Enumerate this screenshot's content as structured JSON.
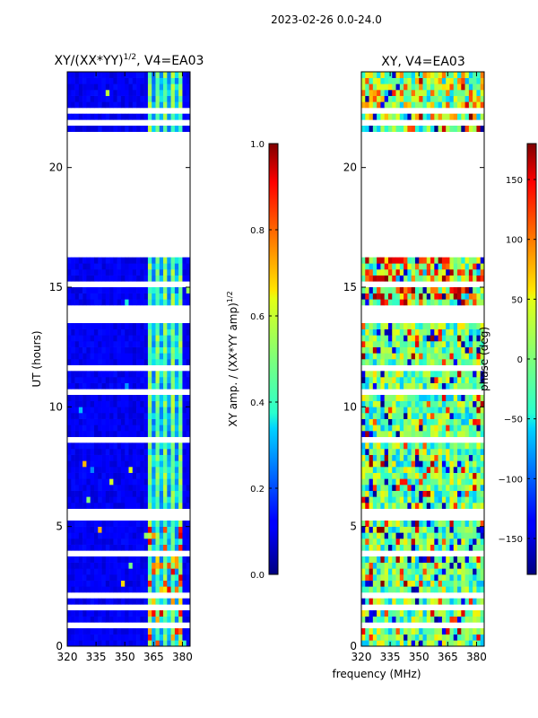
{
  "figure_title": "2023-02-26 0.0-24.0",
  "chart_data": [
    {
      "type": "heatmap",
      "title_main": "XY/(XX*YY)",
      "title_sup": "1/2",
      "title_suffix": ", V4=EA03",
      "xlabel": "",
      "ylabel": "UT (hours)",
      "xlim": [
        320,
        384
      ],
      "ylim": [
        0,
        24
      ],
      "xticks": [
        "320",
        "335",
        "350",
        "365",
        "380"
      ],
      "xtick_values": [
        320,
        335,
        350,
        365,
        380
      ],
      "yticks": [
        "0",
        "5",
        "10",
        "15",
        "20"
      ],
      "ytick_values": [
        0,
        5,
        10,
        15,
        20
      ],
      "gap_hours": [
        16.45,
        21.45
      ],
      "active_channel_range_mhz": [
        362,
        380
      ],
      "colorbar": {
        "label_main": "XY amp. / (XX*YY amp)",
        "label_sup": "1/2",
        "range": [
          0.0,
          1.0
        ],
        "ticks": [
          "0.0",
          "0.2",
          "0.4",
          "0.6",
          "0.8",
          "1.0"
        ],
        "tick_values": [
          0.0,
          0.2,
          0.4,
          0.6,
          0.8,
          1.0
        ],
        "colormap": "jet"
      }
    },
    {
      "type": "heatmap",
      "title": "XY, V4=EA03",
      "xlabel": "frequency (MHz)",
      "ylabel": "",
      "xlim": [
        320,
        384
      ],
      "ylim": [
        0,
        24
      ],
      "xticks": [
        "320",
        "335",
        "350",
        "365",
        "380"
      ],
      "xtick_values": [
        320,
        335,
        350,
        365,
        380
      ],
      "yticks": [
        "0",
        "5",
        "10",
        "15",
        "20"
      ],
      "ytick_values": [
        0,
        5,
        10,
        15,
        20
      ],
      "gap_hours": [
        16.45,
        21.45
      ],
      "colorbar": {
        "label": "phase (deg)",
        "range": [
          -180,
          180
        ],
        "ticks": [
          "−150",
          "−100",
          "−50",
          "0",
          "50",
          "100",
          "150"
        ],
        "tick_values": [
          -150,
          -100,
          -50,
          0,
          50,
          100,
          150
        ],
        "colormap": "jet"
      }
    }
  ]
}
